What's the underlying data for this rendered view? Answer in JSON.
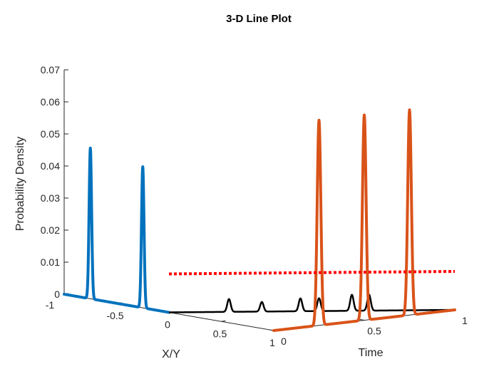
{
  "chart_data": {
    "type": "line",
    "projection": "3d",
    "title": "3-D Line Plot",
    "xlabel": "X/Y",
    "ylabel": "Time",
    "zlabel": "Probability Density",
    "zlim": [
      0,
      0.07
    ],
    "z_ticks": [
      "0",
      "0.01",
      "0.02",
      "0.03",
      "0.04",
      "0.05",
      "0.06",
      "0.07"
    ],
    "xy_ticks": [
      "-1",
      "-0.5",
      "0",
      "0.5",
      "1"
    ],
    "time_ticks": [
      "0",
      "0.5",
      "1"
    ],
    "grid": false,
    "series": [
      {
        "color": "#0072BD",
        "line_style": "solid",
        "time": 0,
        "peaks": [
          {
            "position": -0.75,
            "density": 0.047
          },
          {
            "position": -0.25,
            "density": 0.044
          }
        ]
      },
      {
        "color": "#000000",
        "line_style": "solid",
        "peaks": [
          {
            "position": 0.3,
            "time": 0.12,
            "density": 0.004
          },
          {
            "position": 0.5,
            "time": 0.15,
            "density": 0.003
          },
          {
            "position": 0.5,
            "time": 0.42,
            "density": 0.004
          },
          {
            "position": 0.58,
            "time": 0.47,
            "density": 0.004
          },
          {
            "position": 0.72,
            "time": 0.56,
            "density": 0.005
          },
          {
            "position": 0.8,
            "time": 0.6,
            "density": 0.005
          }
        ]
      },
      {
        "color": "#D95319",
        "line_style": "solid",
        "position": 1,
        "peaks": [
          {
            "time": 0.25,
            "density": 0.064
          },
          {
            "time": 0.5,
            "density": 0.064
          },
          {
            "time": 0.75,
            "density": 0.064
          }
        ]
      },
      {
        "color": "#FF0000",
        "line_style": "dotted",
        "from": {
          "position": 0,
          "time": 0,
          "density": 0.012
        },
        "to": {
          "position": 1,
          "time": 1,
          "density": 0.012
        }
      }
    ]
  }
}
